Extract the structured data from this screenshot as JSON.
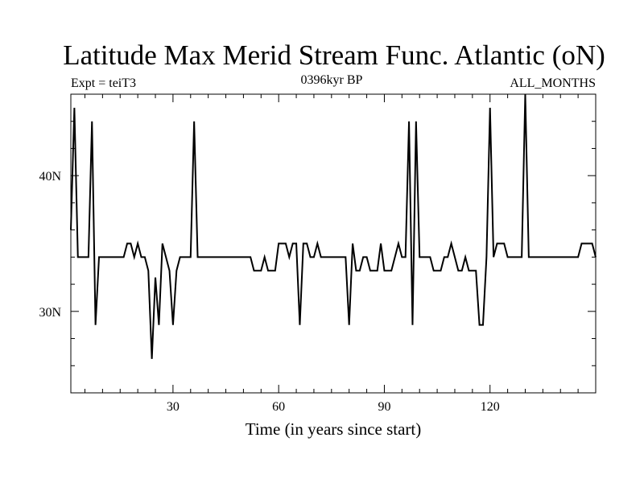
{
  "chart_data": {
    "type": "line",
    "title": "Latitude Max Merid Stream Func. Atlantic (oN)",
    "subtitle_left": "Expt = teiT3",
    "subtitle_center": "0396kyr BP",
    "subtitle_right": "ALL_MONTHS",
    "xlabel": "Time (in years since start)",
    "ylabel": "",
    "xlim": [
      1,
      150
    ],
    "ylim": [
      24,
      46
    ],
    "x_ticks": [
      {
        "value": 30,
        "label": "30"
      },
      {
        "value": 60,
        "label": "60"
      },
      {
        "value": 90,
        "label": "90"
      },
      {
        "value": 120,
        "label": "120"
      }
    ],
    "y_ticks": [
      {
        "value": 30,
        "label": "30N"
      },
      {
        "value": 40,
        "label": "40N"
      }
    ],
    "grid": false,
    "series": [
      {
        "color": "#000000",
        "points": [
          [
            1,
            36
          ],
          [
            2,
            45
          ],
          [
            3,
            34
          ],
          [
            4,
            34
          ],
          [
            5,
            34
          ],
          [
            6,
            34
          ],
          [
            7,
            44
          ],
          [
            8,
            29
          ],
          [
            9,
            34
          ],
          [
            10,
            34
          ],
          [
            11,
            34
          ],
          [
            12,
            34
          ],
          [
            13,
            34
          ],
          [
            14,
            34
          ],
          [
            15,
            34
          ],
          [
            16,
            34
          ],
          [
            17,
            35
          ],
          [
            18,
            35
          ],
          [
            19,
            34
          ],
          [
            20,
            35
          ],
          [
            21,
            34
          ],
          [
            22,
            34
          ],
          [
            23,
            33
          ],
          [
            24,
            26.5
          ],
          [
            25,
            32.5
          ],
          [
            26,
            29
          ],
          [
            27,
            35
          ],
          [
            28,
            34
          ],
          [
            29,
            33
          ],
          [
            30,
            29
          ],
          [
            31,
            33
          ],
          [
            32,
            34
          ],
          [
            33,
            34
          ],
          [
            34,
            34
          ],
          [
            35,
            34
          ],
          [
            36,
            44
          ],
          [
            37,
            34
          ],
          [
            38,
            34
          ],
          [
            39,
            34
          ],
          [
            40,
            34
          ],
          [
            41,
            34
          ],
          [
            42,
            34
          ],
          [
            43,
            34
          ],
          [
            44,
            34
          ],
          [
            45,
            34
          ],
          [
            46,
            34
          ],
          [
            47,
            34
          ],
          [
            48,
            34
          ],
          [
            49,
            34
          ],
          [
            50,
            34
          ],
          [
            51,
            34
          ],
          [
            52,
            34
          ],
          [
            53,
            33
          ],
          [
            54,
            33
          ],
          [
            55,
            33
          ],
          [
            56,
            34
          ],
          [
            57,
            33
          ],
          [
            58,
            33
          ],
          [
            59,
            33
          ],
          [
            60,
            35
          ],
          [
            61,
            35
          ],
          [
            62,
            35
          ],
          [
            63,
            34
          ],
          [
            64,
            35
          ],
          [
            65,
            35
          ],
          [
            66,
            29
          ],
          [
            67,
            35
          ],
          [
            68,
            35
          ],
          [
            69,
            34
          ],
          [
            70,
            34
          ],
          [
            71,
            35
          ],
          [
            72,
            34
          ],
          [
            73,
            34
          ],
          [
            74,
            34
          ],
          [
            75,
            34
          ],
          [
            76,
            34
          ],
          [
            77,
            34
          ],
          [
            78,
            34
          ],
          [
            79,
            34
          ],
          [
            80,
            29
          ],
          [
            81,
            35
          ],
          [
            82,
            33
          ],
          [
            83,
            33
          ],
          [
            84,
            34
          ],
          [
            85,
            34
          ],
          [
            86,
            33
          ],
          [
            87,
            33
          ],
          [
            88,
            33
          ],
          [
            89,
            35
          ],
          [
            90,
            33
          ],
          [
            91,
            33
          ],
          [
            92,
            33
          ],
          [
            93,
            34
          ],
          [
            94,
            35
          ],
          [
            95,
            34
          ],
          [
            96,
            34
          ],
          [
            97,
            44
          ],
          [
            98,
            29
          ],
          [
            99,
            44
          ],
          [
            100,
            34
          ],
          [
            101,
            34
          ],
          [
            102,
            34
          ],
          [
            103,
            34
          ],
          [
            104,
            33
          ],
          [
            105,
            33
          ],
          [
            106,
            33
          ],
          [
            107,
            34
          ],
          [
            108,
            34
          ],
          [
            109,
            35
          ],
          [
            110,
            34
          ],
          [
            111,
            33
          ],
          [
            112,
            33
          ],
          [
            113,
            34
          ],
          [
            114,
            33
          ],
          [
            115,
            33
          ],
          [
            116,
            33
          ],
          [
            117,
            29
          ],
          [
            118,
            29
          ],
          [
            119,
            34
          ],
          [
            120,
            45
          ],
          [
            121,
            34
          ],
          [
            122,
            35
          ],
          [
            123,
            35
          ],
          [
            124,
            35
          ],
          [
            125,
            34
          ],
          [
            126,
            34
          ],
          [
            127,
            34
          ],
          [
            128,
            34
          ],
          [
            129,
            34
          ],
          [
            130,
            46
          ],
          [
            131,
            34
          ],
          [
            132,
            34
          ],
          [
            133,
            34
          ],
          [
            134,
            34
          ],
          [
            135,
            34
          ],
          [
            136,
            34
          ],
          [
            137,
            34
          ],
          [
            138,
            34
          ],
          [
            139,
            34
          ],
          [
            140,
            34
          ],
          [
            141,
            34
          ],
          [
            142,
            34
          ],
          [
            143,
            34
          ],
          [
            144,
            34
          ],
          [
            145,
            34
          ],
          [
            146,
            35
          ],
          [
            147,
            35
          ],
          [
            148,
            35
          ],
          [
            149,
            35
          ],
          [
            150,
            34
          ]
        ]
      }
    ]
  }
}
